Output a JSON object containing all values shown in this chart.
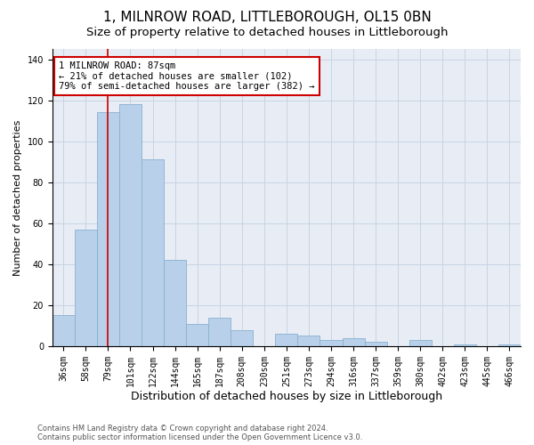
{
  "title": "1, MILNROW ROAD, LITTLEBOROUGH, OL15 0BN",
  "subtitle": "Size of property relative to detached houses in Littleborough",
  "xlabel": "Distribution of detached houses by size in Littleborough",
  "ylabel": "Number of detached properties",
  "bar_categories": [
    "36sqm",
    "58sqm",
    "79sqm",
    "101sqm",
    "122sqm",
    "144sqm",
    "165sqm",
    "187sqm",
    "208sqm",
    "230sqm",
    "251sqm",
    "273sqm",
    "294sqm",
    "316sqm",
    "337sqm",
    "359sqm",
    "380sqm",
    "402sqm",
    "423sqm",
    "445sqm",
    "466sqm"
  ],
  "heights": [
    15,
    57,
    114,
    118,
    91,
    42,
    11,
    14,
    8,
    0,
    6,
    5,
    3,
    4,
    2,
    0,
    3,
    0,
    1,
    0,
    1
  ],
  "bar_color": "#b8d0ea",
  "bar_edge_color": "#8ab0d0",
  "vline_color": "#cc0000",
  "vline_x": 2.5,
  "annotation_text": "1 MILNROW ROAD: 87sqm\n← 21% of detached houses are smaller (102)\n79% of semi-detached houses are larger (382) →",
  "annotation_box_edgecolor": "#cc0000",
  "ylim": [
    0,
    145
  ],
  "yticks": [
    0,
    20,
    40,
    60,
    80,
    100,
    120,
    140
  ],
  "grid_color": "#c8d4e4",
  "bg_color": "#e8edf5",
  "footer": "Contains HM Land Registry data © Crown copyright and database right 2024.\nContains public sector information licensed under the Open Government Licence v3.0.",
  "title_fontsize": 11,
  "subtitle_fontsize": 9.5,
  "xlabel_fontsize": 9,
  "ylabel_fontsize": 8,
  "tick_fontsize": 7,
  "annotation_fontsize": 7.5
}
